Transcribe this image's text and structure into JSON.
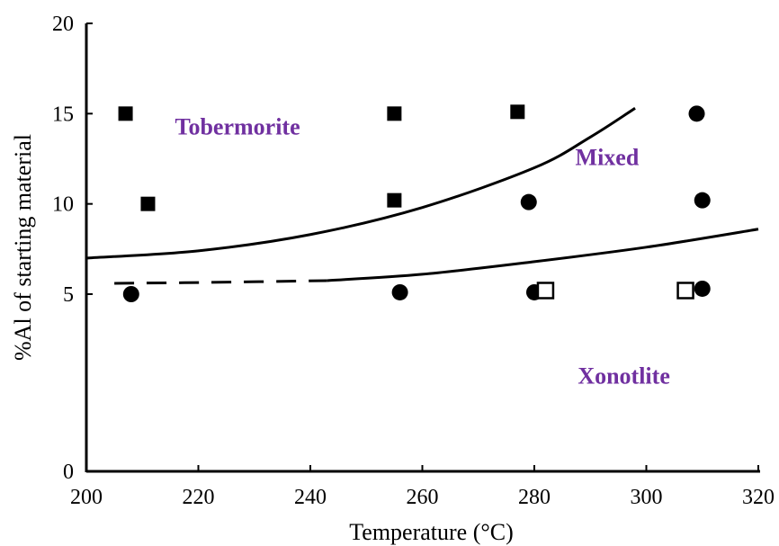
{
  "chart_data": {
    "type": "scatter",
    "xlabel": "Temperature (°C)",
    "ylabel": "%Al of starting material",
    "xlim": [
      200,
      320
    ],
    "ylim": [
      0,
      20
    ],
    "x_ticks": [
      200,
      220,
      240,
      260,
      280,
      300,
      320
    ],
    "y_ticks": [
      0,
      5,
      10,
      15,
      20
    ],
    "grid": false,
    "legend": "none",
    "series": [
      {
        "marker": "filled-square",
        "color": "#000000",
        "points": [
          {
            "x": 207,
            "y": 15
          },
          {
            "x": 211,
            "y": 10
          },
          {
            "x": 255,
            "y": 15
          },
          {
            "x": 255,
            "y": 10.2
          },
          {
            "x": 277,
            "y": 15.1
          }
        ]
      },
      {
        "marker": "filled-circle",
        "color": "#000000",
        "points": [
          {
            "x": 208,
            "y": 5
          },
          {
            "x": 256,
            "y": 5.1
          },
          {
            "x": 279,
            "y": 10.1
          },
          {
            "x": 280,
            "y": 5.1
          },
          {
            "x": 309,
            "y": 15
          },
          {
            "x": 310,
            "y": 10.2
          },
          {
            "x": 310,
            "y": 5.3
          }
        ]
      },
      {
        "marker": "open-square",
        "color": "#000000",
        "points": [
          {
            "x": 282,
            "y": 5.2
          },
          {
            "x": 307,
            "y": 5.2
          }
        ]
      }
    ],
    "boundaries": [
      {
        "style": "solid",
        "points": [
          [
            200,
            7
          ],
          [
            220,
            7.4
          ],
          [
            240,
            8.3
          ],
          [
            260,
            9.8
          ],
          [
            280,
            12
          ],
          [
            290,
            13.7
          ],
          [
            298,
            15.3
          ]
        ]
      },
      {
        "style": "dashed",
        "points": [
          [
            205,
            5.6
          ],
          [
            222,
            5.65
          ],
          [
            243,
            5.75
          ]
        ]
      },
      {
        "style": "solid",
        "points": [
          [
            243,
            5.75
          ],
          [
            260,
            6.1
          ],
          [
            280,
            6.8
          ],
          [
            300,
            7.6
          ],
          [
            320,
            8.6
          ]
        ]
      }
    ],
    "annotations": [
      {
        "text": "Tobermorite",
        "x": 227,
        "y": 14.3
      },
      {
        "text": "Mixed",
        "x": 293,
        "y": 12.6
      },
      {
        "text": "Xonotlite",
        "x": 296,
        "y": 2.7
      }
    ],
    "axis_breaks": [
      {
        "y_below_tick": 5,
        "note": "y-axis compressed between 0 and 5"
      }
    ],
    "colors": {
      "region_labels": "#7030a0",
      "markers": "#000000"
    }
  }
}
